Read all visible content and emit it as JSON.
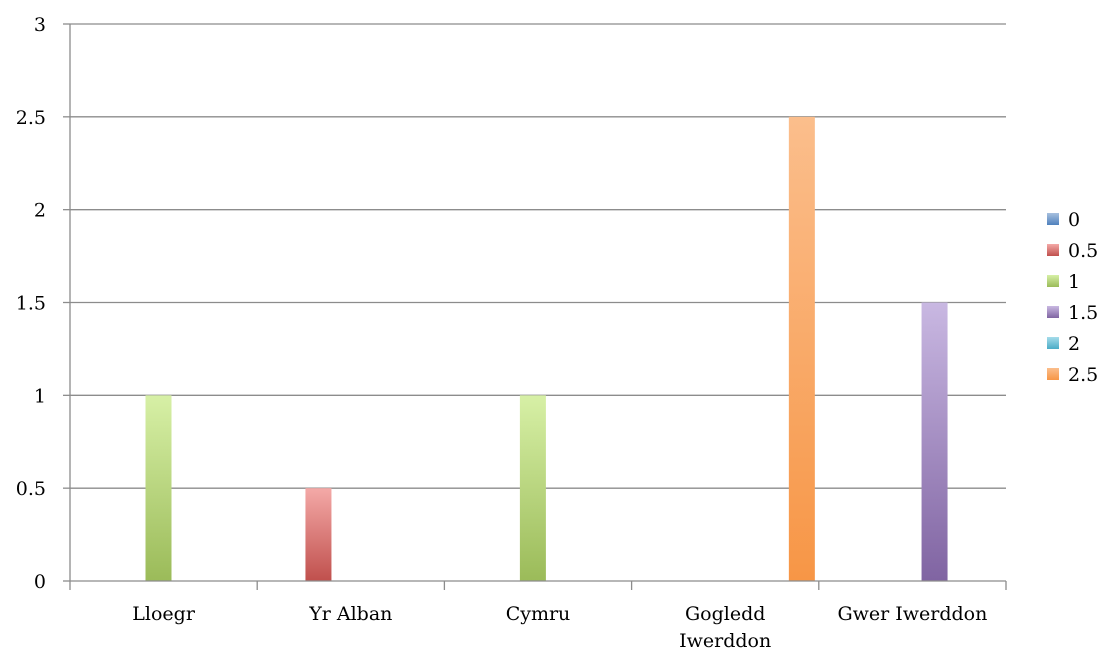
{
  "chart_data": {
    "type": "bar",
    "title": "",
    "xlabel": "",
    "ylabel": "",
    "categories": [
      [
        "Lloegr"
      ],
      [
        "Yr Alban"
      ],
      [
        "Cymru"
      ],
      [
        "Gogledd",
        "Iwerddon"
      ],
      [
        "Gwer Iwerddon"
      ]
    ],
    "ylim": [
      0,
      3
    ],
    "yticks": [
      "0",
      "0.5",
      "1",
      "1.5",
      "2",
      "2.5",
      "3"
    ],
    "ytick_values": [
      0,
      0.5,
      1,
      1.5,
      2,
      2.5,
      3
    ],
    "grid": true,
    "legend_position": "right",
    "series": [
      {
        "name": "0",
        "color": "#4F81BD",
        "light": "#A7C0DE",
        "values": [
          0,
          0,
          0,
          0,
          0
        ]
      },
      {
        "name": "0.5",
        "color": "#C0504D",
        "light": "#F4A9A7",
        "values": [
          0,
          0.5,
          0,
          0,
          0
        ]
      },
      {
        "name": "1",
        "color": "#9BBB59",
        "light": "#D7F0A6",
        "values": [
          1,
          0,
          1,
          0,
          0
        ]
      },
      {
        "name": "1.5",
        "color": "#8064A2",
        "light": "#C9B8E2",
        "values": [
          0,
          0,
          0,
          0,
          1.5
        ]
      },
      {
        "name": "2",
        "color": "#4BACC6",
        "light": "#A5DCEA",
        "values": [
          0,
          0,
          0,
          0,
          0
        ]
      },
      {
        "name": "2.5",
        "color": "#F79646",
        "light": "#FBBE8C",
        "values": [
          0,
          0,
          0,
          2.5,
          0
        ]
      }
    ]
  }
}
